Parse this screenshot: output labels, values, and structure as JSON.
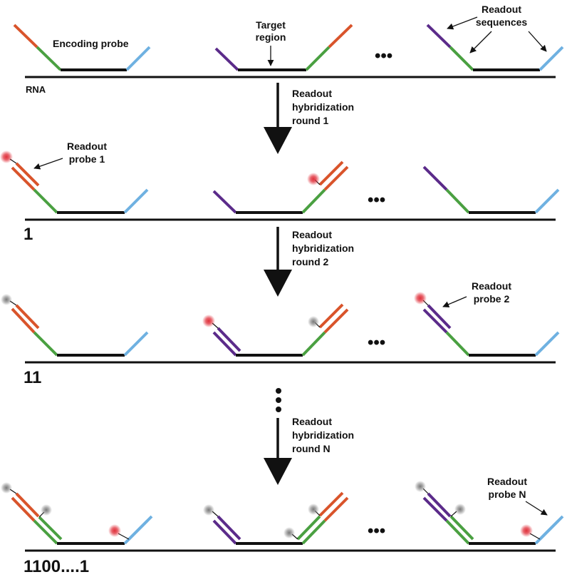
{
  "labels": {
    "encoding_probe": "Encoding probe",
    "target_region": [
      "Target",
      "region"
    ],
    "readout_sequences": [
      "Readout",
      "sequences"
    ],
    "rna": "RNA",
    "round1": [
      "Readout",
      "hybridization",
      "round 1"
    ],
    "round2": [
      "Readout",
      "hybridization",
      "round 2"
    ],
    "roundN": [
      "Readout",
      "hybridization",
      "round N"
    ],
    "probe1": [
      "Readout",
      "probe 1"
    ],
    "probe2": [
      "Readout",
      "probe 2"
    ],
    "probeN": [
      "Readout",
      "probe N"
    ],
    "ellipsis": "•••",
    "vertical_ellipsis": "⋮",
    "code1": "1",
    "code2": "11",
    "code3": "1100....1"
  },
  "colors": {
    "orange": "#d9542b",
    "green": "#4aa041",
    "blue": "#6fb1e1",
    "purple": "#5b2b8a",
    "black": "#111111",
    "fluor_on": "#e0303b",
    "fluor_off": "#8a8a8a"
  }
}
